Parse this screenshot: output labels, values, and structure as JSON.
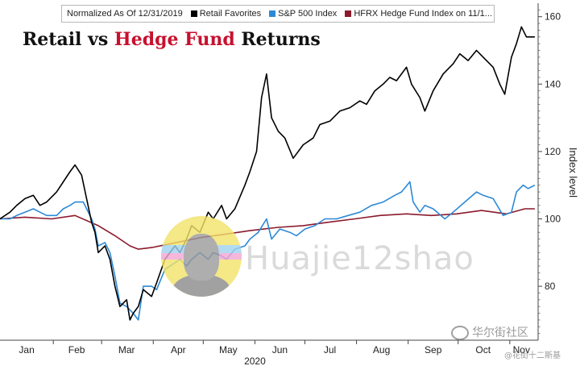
{
  "chart_data": {
    "type": "line",
    "title_part1": "Retail vs ",
    "title_accent": "Hedge Fund",
    "title_part2": " Returns",
    "legend_note": "Normalized As Of 12/31/2019",
    "ylabel": "Index level",
    "ylim": [
      64,
      164
    ],
    "yticks": [
      80,
      100,
      120,
      140,
      160
    ],
    "grid": false,
    "legend_position": "top",
    "x_axis_labels": [
      "Jan",
      "Feb",
      "Mar",
      "Apr",
      "May",
      "Jun",
      "Jul",
      "Aug",
      "Sep",
      "Oct",
      "Nov"
    ],
    "x_year_label": "2020",
    "series": [
      {
        "name": "Retail Favorites",
        "color": "#000000",
        "points": [
          [
            "2019-12-31",
            100
          ],
          [
            "2020-01-06",
            102
          ],
          [
            "2020-01-10",
            104
          ],
          [
            "2020-01-15",
            106
          ],
          [
            "2020-01-20",
            107
          ],
          [
            "2020-01-24",
            104
          ],
          [
            "2020-01-28",
            105
          ],
          [
            "2020-02-03",
            108
          ],
          [
            "2020-02-07",
            111
          ],
          [
            "2020-02-11",
            114
          ],
          [
            "2020-02-14",
            116
          ],
          [
            "2020-02-18",
            113
          ],
          [
            "2020-02-21",
            106
          ],
          [
            "2020-02-24",
            99
          ],
          [
            "2020-02-26",
            96
          ],
          [
            "2020-02-28",
            90
          ],
          [
            "2020-03-03",
            92
          ],
          [
            "2020-03-06",
            88
          ],
          [
            "2020-03-09",
            80
          ],
          [
            "2020-03-12",
            74
          ],
          [
            "2020-03-16",
            76
          ],
          [
            "2020-03-18",
            70
          ],
          [
            "2020-03-20",
            72
          ],
          [
            "2020-03-23",
            74
          ],
          [
            "2020-03-26",
            79
          ],
          [
            "2020-03-31",
            77
          ],
          [
            "2020-04-03",
            81
          ],
          [
            "2020-04-08",
            88
          ],
          [
            "2020-04-14",
            92
          ],
          [
            "2020-04-17",
            90
          ],
          [
            "2020-04-21",
            94
          ],
          [
            "2020-04-24",
            98
          ],
          [
            "2020-04-29",
            96
          ],
          [
            "2020-05-04",
            102
          ],
          [
            "2020-05-07",
            100
          ],
          [
            "2020-05-12",
            104
          ],
          [
            "2020-05-15",
            100
          ],
          [
            "2020-05-20",
            103
          ],
          [
            "2020-05-26",
            110
          ],
          [
            "2020-05-29",
            114
          ],
          [
            "2020-06-02",
            120
          ],
          [
            "2020-06-05",
            136
          ],
          [
            "2020-06-08",
            143
          ],
          [
            "2020-06-11",
            130
          ],
          [
            "2020-06-15",
            126
          ],
          [
            "2020-06-19",
            124
          ],
          [
            "2020-06-24",
            118
          ],
          [
            "2020-06-30",
            122
          ],
          [
            "2020-07-06",
            124
          ],
          [
            "2020-07-10",
            128
          ],
          [
            "2020-07-16",
            129
          ],
          [
            "2020-07-22",
            132
          ],
          [
            "2020-07-28",
            133
          ],
          [
            "2020-08-03",
            135
          ],
          [
            "2020-08-07",
            134
          ],
          [
            "2020-08-12",
            138
          ],
          [
            "2020-08-17",
            140
          ],
          [
            "2020-08-21",
            142
          ],
          [
            "2020-08-25",
            141
          ],
          [
            "2020-08-31",
            145
          ],
          [
            "2020-09-03",
            140
          ],
          [
            "2020-09-08",
            136
          ],
          [
            "2020-09-11",
            132
          ],
          [
            "2020-09-16",
            138
          ],
          [
            "2020-09-22",
            143
          ],
          [
            "2020-09-28",
            146
          ],
          [
            "2020-10-02",
            149
          ],
          [
            "2020-10-07",
            147
          ],
          [
            "2020-10-12",
            150
          ],
          [
            "2020-10-16",
            148
          ],
          [
            "2020-10-22",
            145
          ],
          [
            "2020-10-26",
            140
          ],
          [
            "2020-10-29",
            137
          ],
          [
            "2020-11-02",
            148
          ],
          [
            "2020-11-05",
            152
          ],
          [
            "2020-11-08",
            157
          ],
          [
            "2020-11-11",
            154
          ],
          [
            "2020-11-16",
            154
          ]
        ]
      },
      {
        "name": "S&P 500 Index",
        "color": "#2d89d6",
        "points": [
          [
            "2019-12-31",
            100
          ],
          [
            "2020-01-06",
            100
          ],
          [
            "2020-01-10",
            101
          ],
          [
            "2020-01-15",
            102
          ],
          [
            "2020-01-20",
            103
          ],
          [
            "2020-01-24",
            102
          ],
          [
            "2020-01-28",
            101
          ],
          [
            "2020-02-03",
            101
          ],
          [
            "2020-02-07",
            103
          ],
          [
            "2020-02-11",
            104
          ],
          [
            "2020-02-14",
            105
          ],
          [
            "2020-02-19",
            105
          ],
          [
            "2020-02-21",
            103
          ],
          [
            "2020-02-24",
            100
          ],
          [
            "2020-02-26",
            97
          ],
          [
            "2020-02-28",
            92
          ],
          [
            "2020-03-03",
            93
          ],
          [
            "2020-03-06",
            90
          ],
          [
            "2020-03-09",
            83
          ],
          [
            "2020-03-12",
            75
          ],
          [
            "2020-03-16",
            74
          ],
          [
            "2020-03-18",
            73
          ],
          [
            "2020-03-20",
            72
          ],
          [
            "2020-03-23",
            70
          ],
          [
            "2020-03-26",
            80
          ],
          [
            "2020-03-31",
            80
          ],
          [
            "2020-04-03",
            79
          ],
          [
            "2020-04-08",
            85
          ],
          [
            "2020-04-14",
            87
          ],
          [
            "2020-04-17",
            88
          ],
          [
            "2020-04-21",
            86
          ],
          [
            "2020-04-24",
            88
          ],
          [
            "2020-04-29",
            90
          ],
          [
            "2020-05-04",
            88
          ],
          [
            "2020-05-07",
            90
          ],
          [
            "2020-05-12",
            89
          ],
          [
            "2020-05-15",
            88
          ],
          [
            "2020-05-20",
            91
          ],
          [
            "2020-05-26",
            92
          ],
          [
            "2020-05-29",
            94
          ],
          [
            "2020-06-03",
            96
          ],
          [
            "2020-06-08",
            100
          ],
          [
            "2020-06-11",
            94
          ],
          [
            "2020-06-16",
            97
          ],
          [
            "2020-06-22",
            96
          ],
          [
            "2020-06-26",
            95
          ],
          [
            "2020-07-01",
            97
          ],
          [
            "2020-07-07",
            98
          ],
          [
            "2020-07-13",
            100
          ],
          [
            "2020-07-20",
            100
          ],
          [
            "2020-07-27",
            101
          ],
          [
            "2020-08-03",
            102
          ],
          [
            "2020-08-10",
            104
          ],
          [
            "2020-08-17",
            105
          ],
          [
            "2020-08-24",
            107
          ],
          [
            "2020-08-28",
            108
          ],
          [
            "2020-09-02",
            111
          ],
          [
            "2020-09-04",
            105
          ],
          [
            "2020-09-08",
            102
          ],
          [
            "2020-09-11",
            104
          ],
          [
            "2020-09-16",
            103
          ],
          [
            "2020-09-23",
            100
          ],
          [
            "2020-09-28",
            102
          ],
          [
            "2020-10-05",
            105
          ],
          [
            "2020-10-12",
            108
          ],
          [
            "2020-10-16",
            107
          ],
          [
            "2020-10-22",
            106
          ],
          [
            "2020-10-28",
            101
          ],
          [
            "2020-11-02",
            102
          ],
          [
            "2020-11-05",
            108
          ],
          [
            "2020-11-09",
            110
          ],
          [
            "2020-11-12",
            109
          ],
          [
            "2020-11-16",
            110
          ]
        ]
      },
      {
        "name": "HFRX Hedge Fund Index on 11/1...",
        "color": "#8b1a2c",
        "points": [
          [
            "2019-12-31",
            100
          ],
          [
            "2020-01-15",
            100.5
          ],
          [
            "2020-01-31",
            100
          ],
          [
            "2020-02-14",
            101
          ],
          [
            "2020-02-28",
            98
          ],
          [
            "2020-03-09",
            95
          ],
          [
            "2020-03-18",
            92
          ],
          [
            "2020-03-23",
            91
          ],
          [
            "2020-03-31",
            91.5
          ],
          [
            "2020-04-15",
            93
          ],
          [
            "2020-04-30",
            94.5
          ],
          [
            "2020-05-15",
            95.5
          ],
          [
            "2020-05-29",
            96.5
          ],
          [
            "2020-06-15",
            97.5
          ],
          [
            "2020-06-30",
            98
          ],
          [
            "2020-07-15",
            99
          ],
          [
            "2020-07-31",
            100
          ],
          [
            "2020-08-15",
            101
          ],
          [
            "2020-08-31",
            101.5
          ],
          [
            "2020-09-15",
            101
          ],
          [
            "2020-09-30",
            101.5
          ],
          [
            "2020-10-15",
            102.5
          ],
          [
            "2020-10-30",
            101.5
          ],
          [
            "2020-11-10",
            103
          ],
          [
            "2020-11-16",
            103
          ]
        ]
      }
    ]
  },
  "watermark_text": "Huajie12shao",
  "wechat_label": "华尔街社区",
  "wechat_handle": "@花街十二斯基"
}
